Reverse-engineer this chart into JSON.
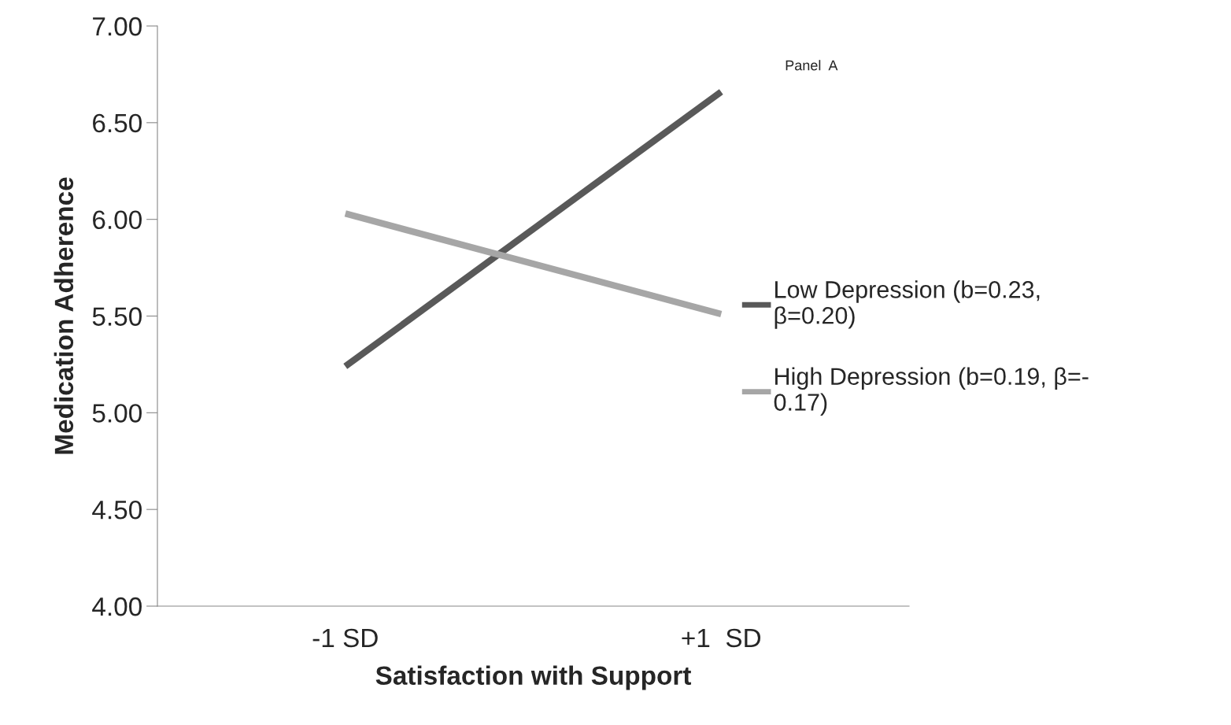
{
  "chart_data": {
    "type": "line",
    "categories": [
      "-1 SD",
      "+1  SD"
    ],
    "xlabel": "Satisfaction with Support",
    "ylabel": "Medication Adherence",
    "annotations": [
      "Panel  A"
    ],
    "series": [
      {
        "name": "Low Depression (b=0.23,\nβ=0.20)",
        "color": "#595959",
        "values": [
          5.24,
          6.66
        ]
      },
      {
        "name": "High Depression (b=0.19, β=-\n0.17)",
        "color": "#a6a6a6",
        "values": [
          6.03,
          5.51
        ]
      }
    ],
    "ylim": [
      4,
      7
    ],
    "yticks": [
      {
        "value": 4,
        "label": "4.00"
      },
      {
        "value": 4.5,
        "label": "4.50"
      },
      {
        "value": 5,
        "label": "5.00"
      },
      {
        "value": 5.5,
        "label": "5.50"
      },
      {
        "value": 6,
        "label": "6.00"
      },
      {
        "value": 6.5,
        "label": "6.50"
      },
      {
        "value": 7,
        "label": "7.00"
      }
    ],
    "grid": false,
    "legend": "right",
    "marker": "none",
    "line_style": "solid"
  }
}
